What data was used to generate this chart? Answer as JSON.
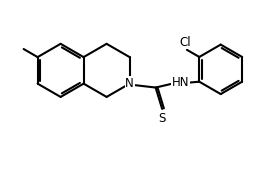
{
  "bg_color": "#ffffff",
  "bond_color": "#000000",
  "text_color": "#000000",
  "line_width": 1.5,
  "figsize": [
    2.67,
    1.85
  ],
  "dpi": 100,
  "xlim": [
    0,
    10
  ],
  "ylim": [
    0,
    7
  ],
  "N_label": "N",
  "HN_label": "HN",
  "Cl_label": "Cl",
  "S_label": "S",
  "font_size": 8.5
}
